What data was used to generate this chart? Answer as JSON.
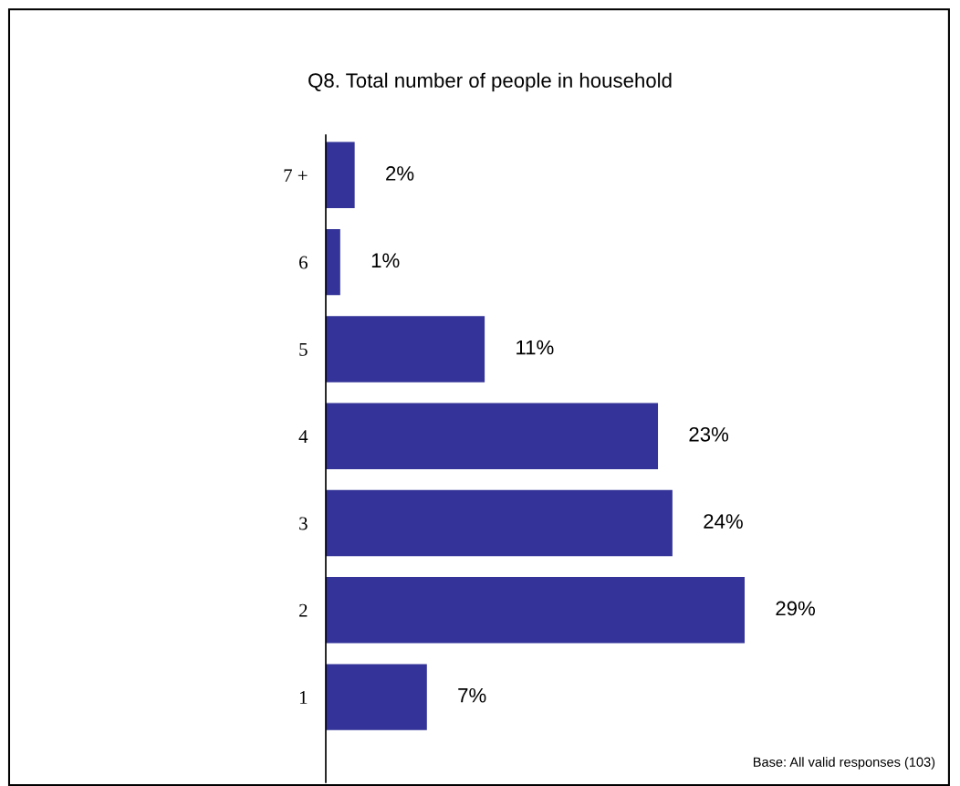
{
  "chart_data": {
    "type": "bar",
    "orientation": "horizontal",
    "title": "Q8. Total number of people in household",
    "categories": [
      "7 +",
      "6",
      "5",
      "4",
      "3",
      "2",
      "1"
    ],
    "values": [
      2,
      1,
      11,
      23,
      24,
      29,
      7
    ],
    "value_labels": [
      "2%",
      "1%",
      "11%",
      "23%",
      "24%",
      "29%",
      "7%"
    ],
    "color": "#333399",
    "tick_labels": "y",
    "annotations": [
      "Base: All valid responses (103)"
    ]
  }
}
